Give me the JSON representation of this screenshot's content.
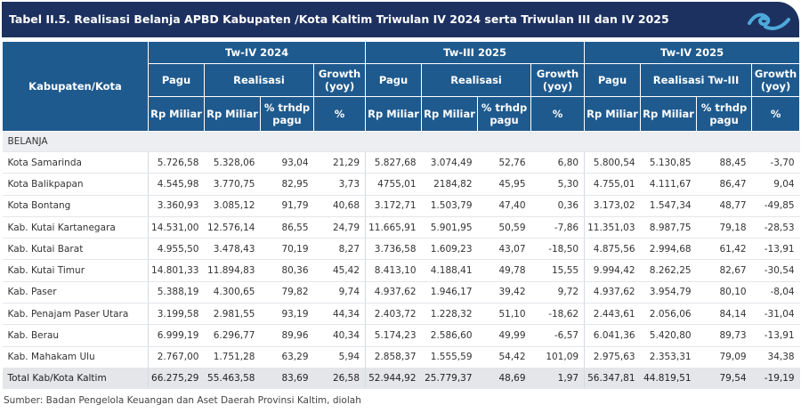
{
  "title": "Tabel II.5. Realisasi Belanja APBD Kabupaten /Kota Kaltim Triwulan IV 2024 serta Triwulan III dan IV 2025",
  "header": {
    "region_label": "Kabupaten/Kota",
    "groups": [
      "Tw-IV 2024",
      "Tw-III 2025",
      "Tw-IV 2025"
    ],
    "sub": [
      "Pagu",
      "Realisasi",
      "Growth (yoy)",
      "Pagu",
      "Realisasi",
      "Growth (yoy)",
      "Pagu",
      "Realisasi Tw-III",
      "Growth (yoy)"
    ],
    "units": [
      "Rp Miliar",
      "Rp Miliar",
      "% trhdp pagu",
      "%",
      "Rp Miliar",
      "Rp Miliar",
      "% trhdp pagu",
      "%",
      "Rp Miliar",
      "Rp Miliar",
      "% trhdp pagu",
      "%"
    ]
  },
  "section": "BELANJA",
  "rows": [
    {
      "name": "Kota Samarinda",
      "v": [
        "5.726,58",
        "5.328,06",
        "93,04",
        "21,29",
        "5.827,68",
        "3.074,49",
        "52,76",
        "6,80",
        "5.800,54",
        "5.130,85",
        "88,45",
        "-3,70"
      ]
    },
    {
      "name": "Kota Balikpapan",
      "v": [
        "4.545,98",
        "3.770,75",
        "82,95",
        "3,73",
        "4755,01",
        "2184,82",
        "45,95",
        "5,30",
        "4.755,01",
        "4.111,67",
        "86,47",
        "9,04"
      ]
    },
    {
      "name": "Kota Bontang",
      "v": [
        "3.360,93",
        "3.085,12",
        "91,79",
        "40,68",
        "3.172,71",
        "1.503,79",
        "47,40",
        "0,36",
        "3.173,02",
        "1.547,34",
        "48,77",
        "-49,85"
      ]
    },
    {
      "name": "Kab. Kutai Kartanegara",
      "v": [
        "14.531,00",
        "12.576,14",
        "86,55",
        "24,79",
        "11.665,91",
        "5.901,95",
        "50,59",
        "-7,86",
        "11.351,03",
        "8.987,75",
        "79,18",
        "-28,53"
      ]
    },
    {
      "name": "Kab. Kutai Barat",
      "v": [
        "4.955,50",
        "3.478,43",
        "70,19",
        "8,27",
        "3.736,58",
        "1.609,23",
        "43,07",
        "-18,50",
        "4.875,56",
        "2.994,68",
        "61,42",
        "-13,91"
      ]
    },
    {
      "name": "Kab. Kutai Timur",
      "v": [
        "14.801,33",
        "11.894,83",
        "80,36",
        "45,42",
        "8.413,10",
        "4.188,41",
        "49,78",
        "15,55",
        "9.994,42",
        "8.262,25",
        "82,67",
        "-30,54"
      ]
    },
    {
      "name": "Kab. Paser",
      "v": [
        "5.388,19",
        "4.300,65",
        "79,82",
        "9,74",
        "4.937,62",
        "1.946,17",
        "39,42",
        "9,72",
        "4.937,62",
        "3.954,79",
        "80,10",
        "-8,04"
      ]
    },
    {
      "name": "Kab. Penajam Paser Utara",
      "v": [
        "3.199,58",
        "2.981,55",
        "93,19",
        "44,34",
        "2.403,72",
        "1.228,32",
        "51,10",
        "-18,62",
        "2.443,61",
        "2.056,06",
        "84,14",
        "-31,04"
      ]
    },
    {
      "name": "Kab. Berau",
      "v": [
        "6.999,19",
        "6.296,77",
        "89,96",
        "40,34",
        "5.174,23",
        "2.586,60",
        "49,99",
        "-6,57",
        "6.041,36",
        "5.420,80",
        "89,73",
        "-13,91"
      ]
    },
    {
      "name": "Kab. Mahakam Ulu",
      "v": [
        "2.767,00",
        "1.751,28",
        "63,29",
        "5,94",
        "2.858,37",
        "1.555,59",
        "54,42",
        "101,09",
        "2.975,63",
        "2.353,31",
        "79,09",
        "34,38"
      ]
    }
  ],
  "total": {
    "name": "Total Kab/Kota Kaltim",
    "v": [
      "66.275,29",
      "55.463,58",
      "83,69",
      "26,58",
      "52.944,92",
      "25.779,37",
      "48,69",
      "1,97",
      "56.347,81",
      "44.819,51",
      "79,54",
      "-19,19"
    ]
  },
  "source": "Sumber: Badan Pengelola Keuangan dan Aset Daerah Provinsi Kaltim, diolah",
  "colors": {
    "title_bg": "#1d3160",
    "header_bg": "#1f5a8e",
    "wave": "#4da9d9"
  },
  "icons": [
    "wave-logo-icon"
  ]
}
